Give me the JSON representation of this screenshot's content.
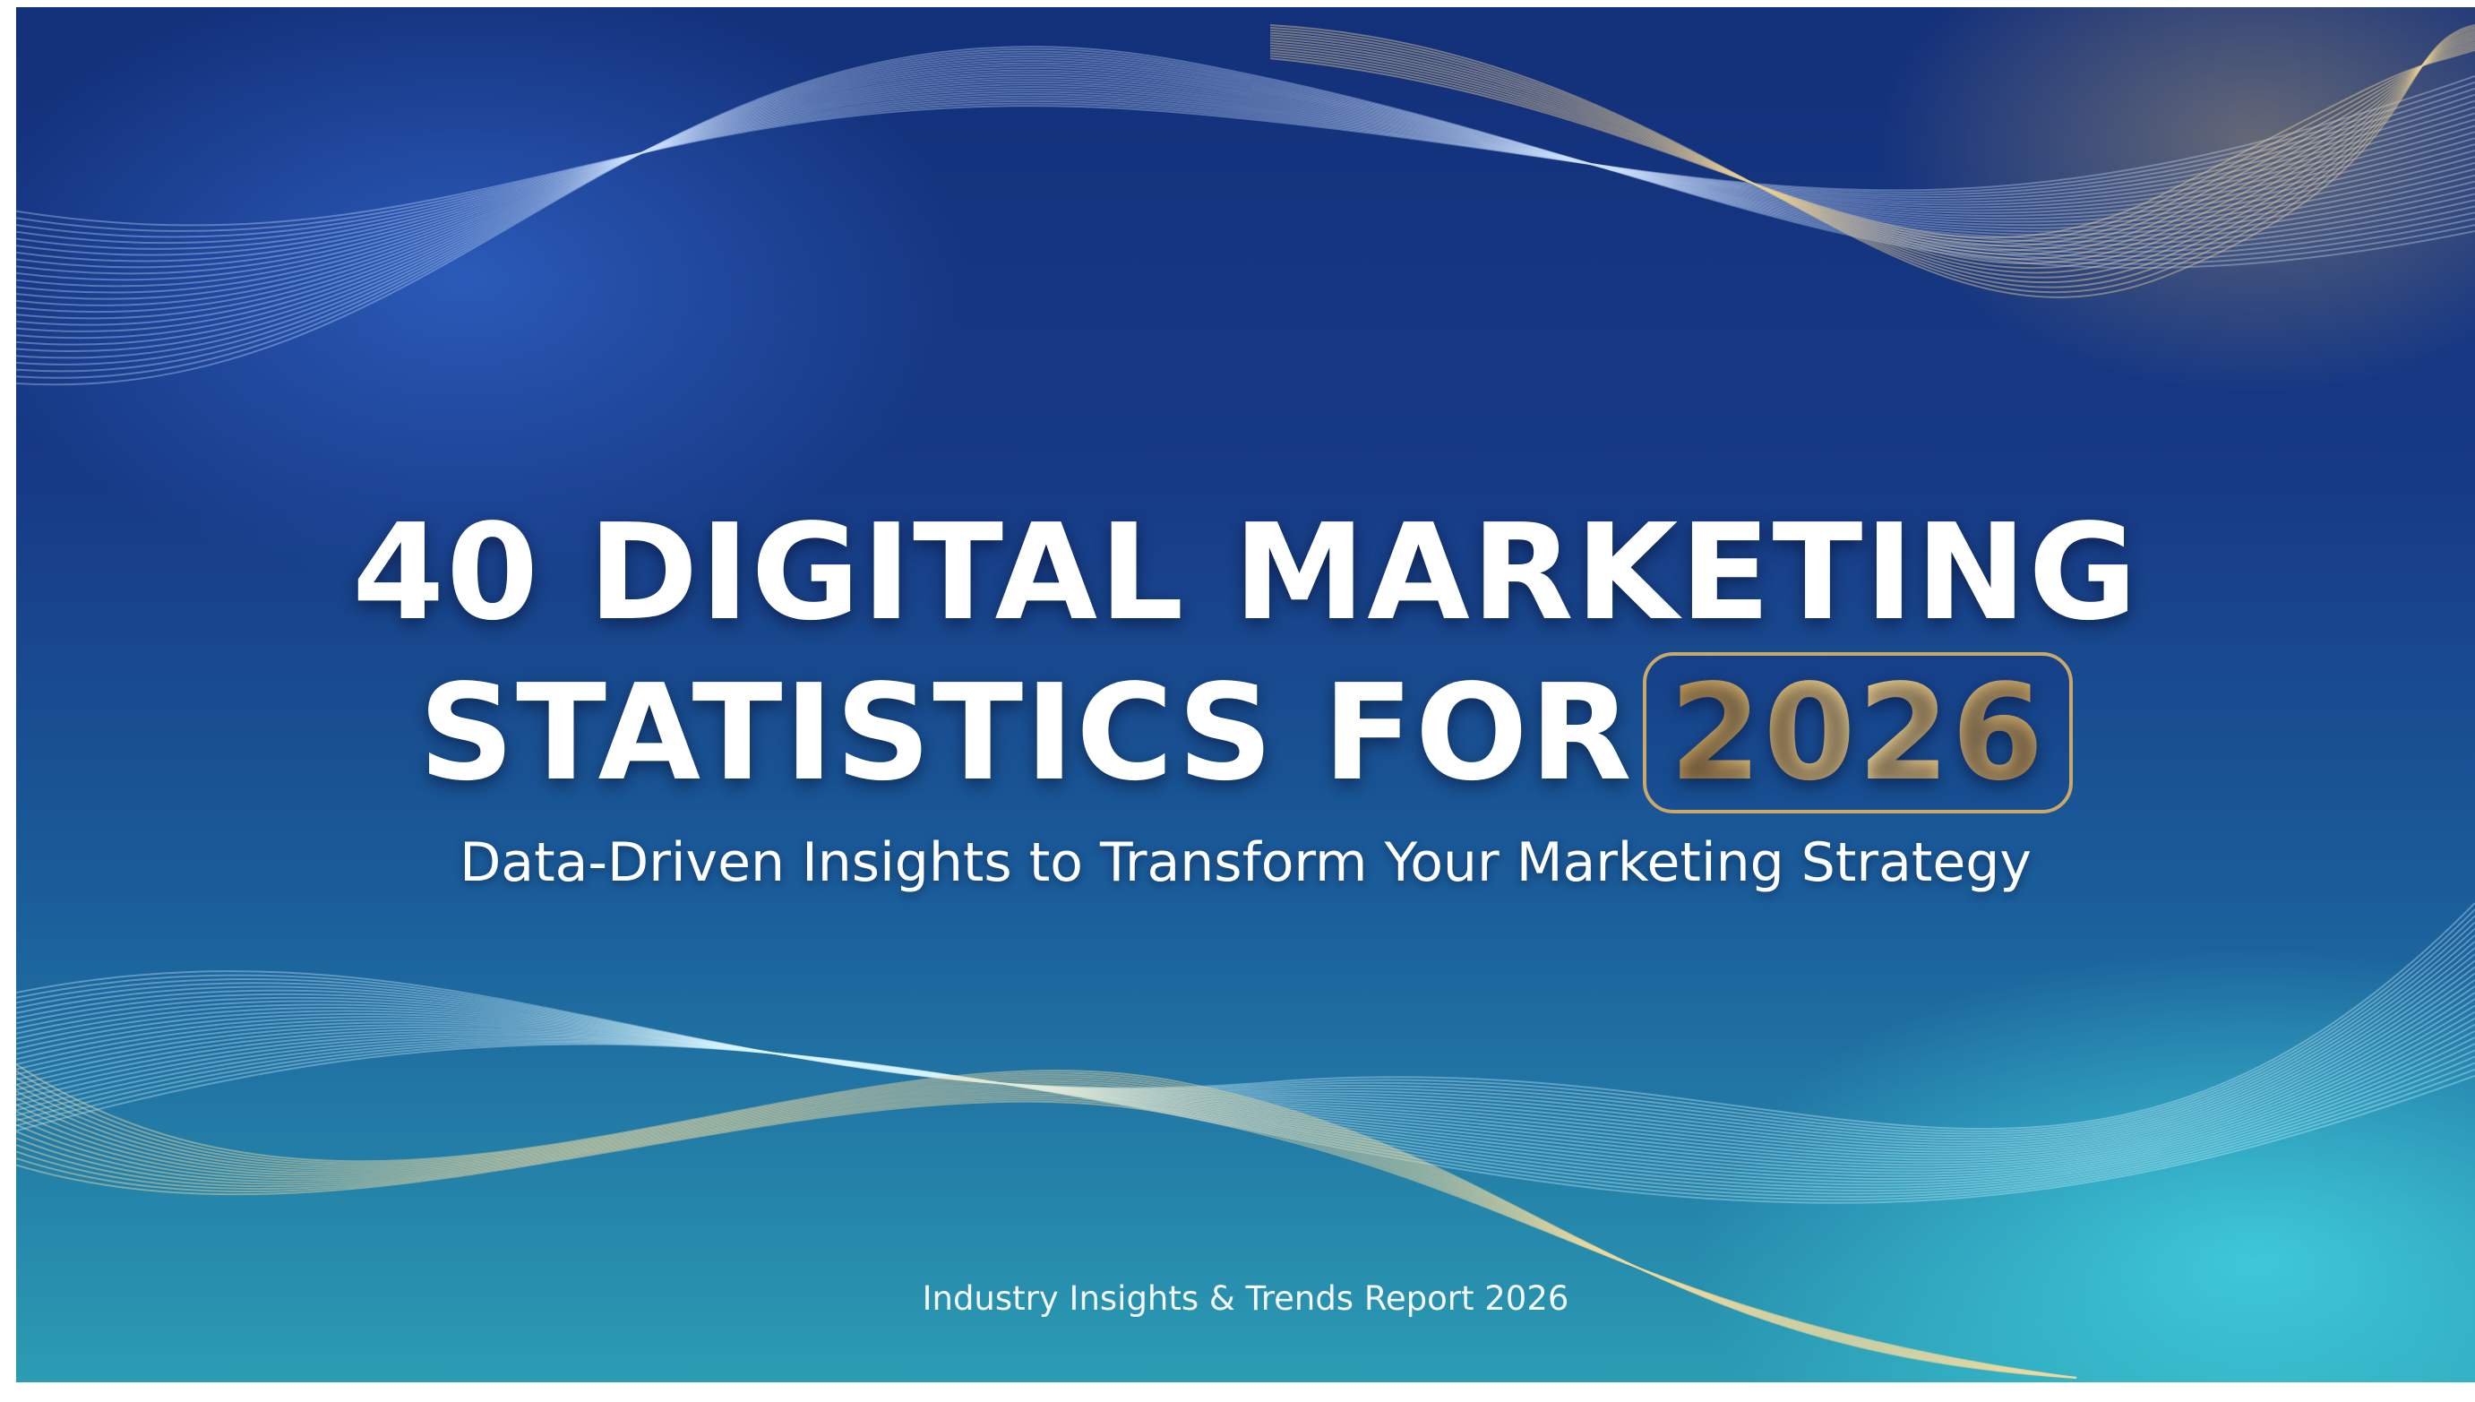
{
  "slide": {
    "title_line1": "40 DIGITAL MARKETING",
    "title_line2": "STATISTICS FOR",
    "year_badge": "2026",
    "subtitle": "Data-Driven Insights to Transform Your Marketing Strategy",
    "footer": "Industry Insights & Trends Report 2026"
  },
  "colors": {
    "background_top": "#13307a",
    "background_bottom": "#2b9cb3",
    "accent_gold": "#d8b574",
    "text": "#ffffff"
  }
}
